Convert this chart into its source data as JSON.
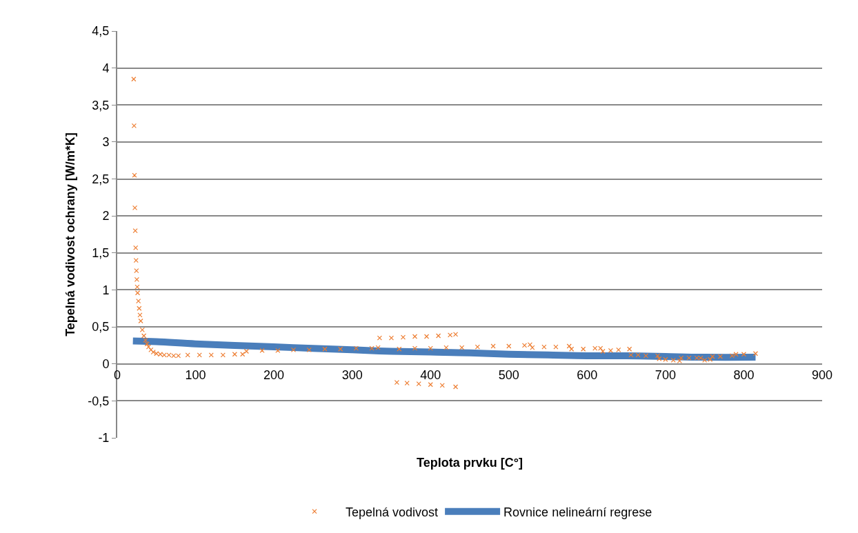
{
  "chart_data": {
    "type": "scatter",
    "xlabel": "Teplota prvku [C°]",
    "ylabel": "Tepelná vodivost ochrany [W/m*K]",
    "xlim": [
      0,
      900
    ],
    "xticks": [
      0,
      100,
      200,
      300,
      400,
      500,
      600,
      700,
      800,
      900
    ],
    "ylim": [
      -1,
      4.5
    ],
    "yticks": [
      -1,
      {
        "value": -0.5,
        "label": "-0,5"
      },
      0,
      {
        "value": 0.5,
        "label": "0,5"
      },
      1,
      {
        "value": 1.5,
        "label": "1,5"
      },
      2,
      {
        "value": 2.5,
        "label": "2,5"
      },
      3,
      {
        "value": 3.5,
        "label": "3,5"
      },
      4,
      {
        "value": 4.5,
        "label": "4,5"
      }
    ],
    "grid": "y",
    "legend": "bottom",
    "marker": "cross",
    "series": [
      {
        "name": "Tepelná vodivost",
        "color": "#ed7d31",
        "x": [
          21,
          21.5,
          22,
          22.5,
          23,
          23.5,
          24,
          24.5,
          25,
          25.5,
          26,
          27,
          28,
          29,
          30,
          32,
          34,
          36,
          38,
          40,
          43,
          46,
          50,
          55,
          60,
          66,
          72,
          78,
          90,
          105,
          120,
          135,
          150,
          160,
          165,
          185,
          205,
          225,
          245,
          265,
          285,
          305,
          325,
          333,
          335,
          350,
          365,
          380,
          395,
          410,
          425,
          432,
          357,
          370,
          385,
          400,
          415,
          432,
          360,
          380,
          400,
          420,
          440,
          460,
          480,
          500,
          520,
          527,
          530,
          545,
          560,
          577,
          580,
          595,
          610,
          617,
          620,
          630,
          640,
          654,
          656,
          665,
          675,
          690,
          692,
          700,
          710,
          718,
          720,
          730,
          740,
          745,
          750,
          757,
          760,
          770,
          785,
          790,
          800,
          815
        ],
        "values": [
          3.85,
          3.22,
          2.55,
          2.11,
          1.8,
          1.57,
          1.4,
          1.26,
          1.14,
          1.04,
          0.96,
          0.85,
          0.75,
          0.66,
          0.58,
          0.46,
          0.38,
          0.32,
          0.27,
          0.23,
          0.19,
          0.16,
          0.14,
          0.13,
          0.12,
          0.12,
          0.11,
          0.11,
          0.12,
          0.12,
          0.12,
          0.12,
          0.13,
          0.13,
          0.17,
          0.18,
          0.18,
          0.19,
          0.19,
          0.2,
          0.2,
          0.21,
          0.21,
          0.22,
          0.35,
          0.35,
          0.36,
          0.37,
          0.37,
          0.38,
          0.39,
          0.4,
          -0.25,
          -0.26,
          -0.27,
          -0.28,
          -0.29,
          -0.31,
          0.2,
          0.21,
          0.21,
          0.22,
          0.22,
          0.23,
          0.24,
          0.24,
          0.25,
          0.26,
          0.22,
          0.23,
          0.23,
          0.24,
          0.2,
          0.2,
          0.21,
          0.21,
          0.17,
          0.18,
          0.19,
          0.2,
          0.12,
          0.12,
          0.11,
          0.11,
          0.07,
          0.06,
          0.05,
          0.04,
          0.08,
          0.08,
          0.08,
          0.08,
          0.05,
          0.06,
          0.1,
          0.1,
          0.11,
          0.13,
          0.13,
          0.14
        ]
      },
      {
        "name": "Rovnice nelineární regrese",
        "type": "line",
        "color": "#4a7ebb",
        "marker": "none",
        "x": [
          20,
          50,
          100,
          150,
          200,
          250,
          300,
          350,
          400,
          450,
          500,
          550,
          600,
          650,
          700,
          750,
          815
        ],
        "values": [
          0.31,
          0.3,
          0.27,
          0.25,
          0.23,
          0.21,
          0.19,
          0.17,
          0.16,
          0.15,
          0.13,
          0.12,
          0.11,
          0.11,
          0.1,
          0.09,
          0.09
        ]
      }
    ]
  }
}
